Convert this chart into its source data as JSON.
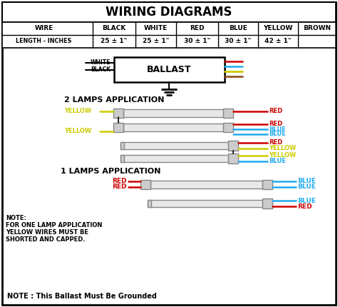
{
  "title": "WIRING DIAGRAMS",
  "bg_color": "#ffffff",
  "table": {
    "headers": [
      "WIRE",
      "BLACK",
      "WHITE",
      "RED",
      "BLUE",
      "YELLOW",
      "BROWN"
    ],
    "row_label": "LENGTH - INCHES",
    "values": [
      "25 ± 1\"",
      "25 ± 1\"",
      "30 ± 1\"",
      "30 ± 1\"",
      "42 ± 1\"",
      ""
    ]
  },
  "colors": {
    "red": "#cc0000",
    "blue": "#22aaee",
    "yellow": "#cccc00",
    "brown": "#8B4513",
    "black": "#000000",
    "white": "#ffffff",
    "gray": "#aaaaaa",
    "light_gray": "#dddddd",
    "tube_fill": "#e8e8e8",
    "cap_fill": "#cccccc"
  },
  "label_2lamps": "2 LAMPS APPLICATION",
  "label_1lamp": "1 LAMPS APPLICATION",
  "note_line1": "NOTE:",
  "note_line2": "FOR ONE LAMP APPLICATION",
  "note_line3": "YELLOW WIRES MUST BE",
  "note_line4": "SHORTED AND CAPPED.",
  "footer": "NOTE : This Ballast Must Be Grounded"
}
